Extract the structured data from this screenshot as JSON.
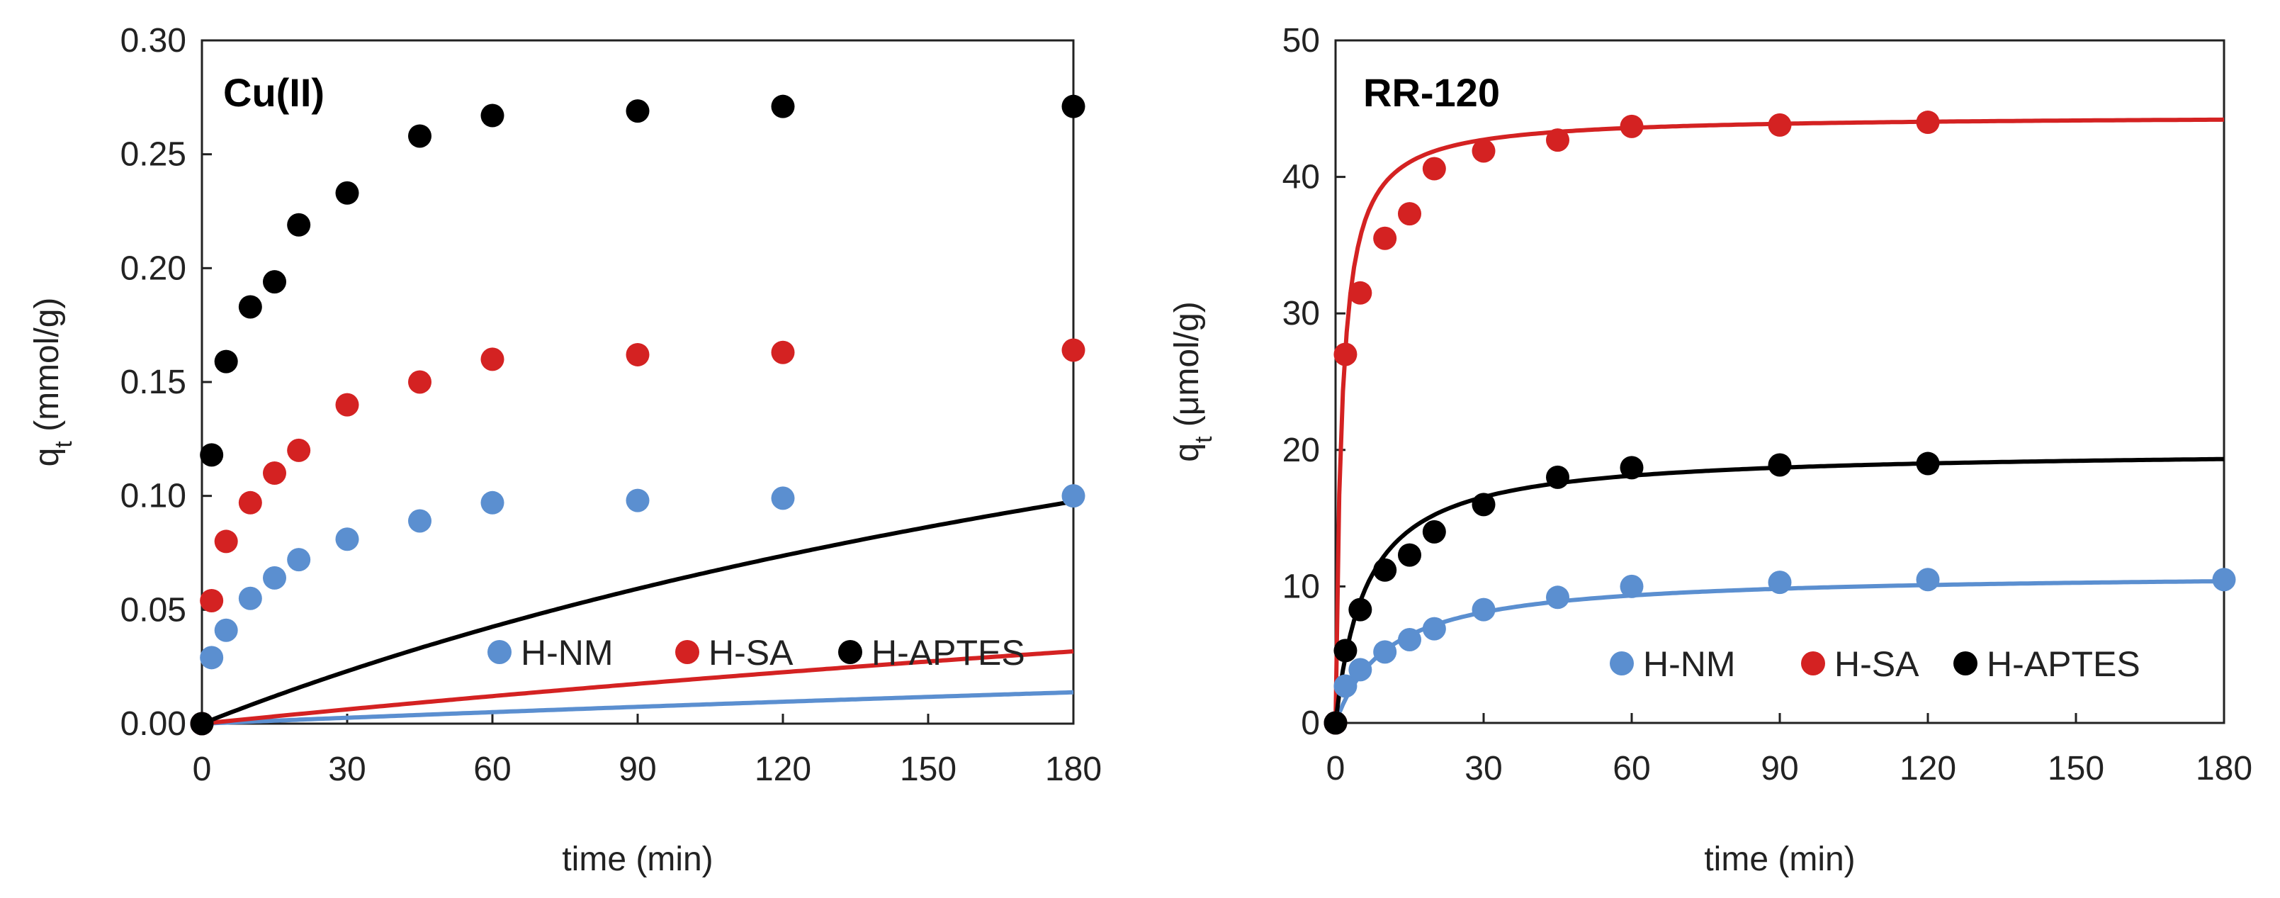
{
  "chart_data": [
    {
      "type": "scatter",
      "panel_label": "Cu(II)",
      "xlabel": "time (min)",
      "ylabel": {
        "prefix": "q",
        "subscript": "t",
        "suffix": " (mmol/g)"
      },
      "xlim": [
        0,
        180
      ],
      "ylim": [
        0,
        0.3
      ],
      "xticks": [
        0,
        30,
        60,
        90,
        120,
        150,
        180
      ],
      "yticks": [
        0,
        0.05,
        0.1,
        0.15,
        0.2,
        0.25,
        0.3
      ],
      "xtick_labels": [
        "0",
        "30",
        "60",
        "90",
        "120",
        "150",
        "180"
      ],
      "ytick_labels": [
        "0.00",
        "0.05",
        "0.10",
        "0.15",
        "0.20",
        "0.25",
        "0.30"
      ],
      "grid": false,
      "legend_position": "bottom-right",
      "series": [
        {
          "name": "H-NM",
          "color": "#5b8fd0",
          "qe": 0.102,
          "k": 0.0085,
          "x": [
            0,
            2,
            5,
            10,
            15,
            20,
            30,
            45,
            60,
            90,
            120,
            180
          ],
          "y": [
            0,
            0.029,
            0.041,
            0.055,
            0.064,
            0.072,
            0.081,
            0.089,
            0.097,
            0.098,
            0.099,
            0.1
          ]
        },
        {
          "name": "H-SA",
          "color": "#d42222",
          "qe": 0.17,
          "k": 0.0075,
          "x": [
            0,
            2,
            5,
            10,
            15,
            20,
            30,
            45,
            60,
            90,
            120,
            180
          ],
          "y": [
            0,
            0.054,
            0.08,
            0.097,
            0.11,
            0.12,
            0.14,
            0.15,
            0.16,
            0.162,
            0.163,
            0.164
          ]
        },
        {
          "name": "H-APTES",
          "color": "#000000",
          "qe": 0.276,
          "k": 0.011,
          "x": [
            0,
            2,
            5,
            10,
            15,
            20,
            30,
            45,
            60,
            90,
            120,
            180
          ],
          "y": [
            0,
            0.118,
            0.159,
            0.183,
            0.194,
            0.219,
            0.233,
            0.258,
            0.267,
            0.269,
            0.271,
            0.271
          ]
        }
      ]
    },
    {
      "type": "scatter",
      "panel_label": "RR-120",
      "xlabel": "time (min)",
      "ylabel": {
        "prefix": "q",
        "subscript": "t",
        "suffix": " (μmol/g)"
      },
      "xlim": [
        0,
        180
      ],
      "ylim": [
        0,
        50
      ],
      "xticks": [
        0,
        30,
        60,
        90,
        120,
        150,
        180
      ],
      "yticks": [
        0,
        10,
        20,
        30,
        40,
        50
      ],
      "xtick_labels": [
        "0",
        "30",
        "60",
        "90",
        "120",
        "150",
        "180"
      ],
      "ytick_labels": [
        "0",
        "10",
        "20",
        "30",
        "40",
        "50"
      ],
      "grid": false,
      "legend_position": "bottom-right",
      "series": [
        {
          "name": "H-NM",
          "color": "#5b8fd0",
          "qe": 11.0,
          "k": 0.0085,
          "x": [
            0,
            2,
            5,
            10,
            15,
            20,
            30,
            45,
            60,
            90,
            120,
            180
          ],
          "y": [
            0,
            2.7,
            3.9,
            5.2,
            6.1,
            6.9,
            8.3,
            9.2,
            10.0,
            10.3,
            10.5,
            10.5
          ]
        },
        {
          "name": "H-SA",
          "color": "#d42222",
          "qe": 44.5,
          "k": 0.018,
          "x": [
            0,
            2,
            5,
            10,
            15,
            20,
            30,
            45,
            60,
            90,
            120
          ],
          "y": [
            0,
            27.0,
            31.5,
            35.5,
            37.3,
            40.6,
            41.9,
            42.7,
            43.7,
            43.8,
            44.0
          ]
        },
        {
          "name": "H-APTES",
          "color": "#000000",
          "qe": 20.0,
          "k": 0.008,
          "x": [
            0,
            2,
            5,
            10,
            15,
            20,
            30,
            45,
            60,
            90,
            120
          ],
          "y": [
            0,
            5.3,
            8.3,
            11.2,
            12.3,
            14.0,
            16.0,
            18.0,
            18.7,
            18.9,
            19.0
          ]
        }
      ]
    }
  ]
}
